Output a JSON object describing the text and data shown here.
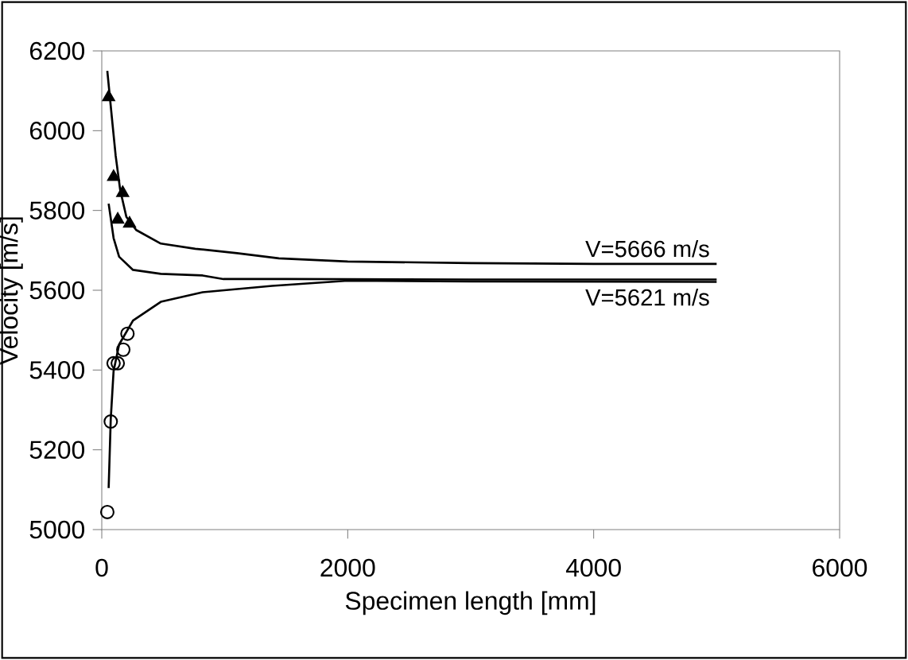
{
  "chart_data": {
    "type": "line",
    "xlabel": "Specimen length [mm]",
    "ylabel": "Velocity [m/s]",
    "xlim": [
      0,
      6000
    ],
    "xticks": [
      0,
      2000,
      4000,
      6000
    ],
    "ylim": [
      5000,
      6200
    ],
    "yticks": [
      5000,
      5200,
      5400,
      5600,
      5800,
      6000,
      6200
    ],
    "series": [
      {
        "marker": "none",
        "color": "#000000",
        "x": [
          45,
          85,
          113,
          150,
          200,
          280,
          480,
          760,
          1100,
          1440,
          2000,
          3000,
          4000,
          5000
        ],
        "values": [
          6150,
          6024,
          5937,
          5851,
          5784,
          5751,
          5717,
          5704,
          5693,
          5680,
          5672,
          5668,
          5666,
          5666
        ]
      },
      {
        "marker": "none",
        "color": "#000000",
        "x": [
          56,
          96,
          141,
          254,
          480,
          820,
          990,
          1500,
          3000,
          5000
        ],
        "values": [
          5817,
          5731,
          5684,
          5651,
          5641,
          5637,
          5628,
          5628,
          5627,
          5627
        ]
      },
      {
        "marker": "none",
        "color": "#000000",
        "x": [
          56,
          73,
          96,
          141,
          254,
          480,
          820,
          1385,
          2000,
          3000,
          5000
        ],
        "values": [
          5104,
          5277,
          5397,
          5464,
          5524,
          5571,
          5595,
          5611,
          5624,
          5622,
          5621
        ]
      },
      {
        "type": "scatter",
        "marker": "triangle",
        "color": "#000000",
        "x": [
          56,
          96,
          170,
          130,
          226
        ],
        "values": [
          6084,
          5884,
          5844,
          5777,
          5767
        ]
      },
      {
        "type": "scatter",
        "marker": "circle",
        "color": "#000000",
        "x": [
          45,
          73,
          96,
          130,
          175,
          209
        ],
        "values": [
          5044,
          5271,
          5417,
          5417,
          5451,
          5491
        ]
      }
    ],
    "annotations": [
      {
        "text": "V=5666 m/s",
        "x": 5000,
        "y": 5666
      },
      {
        "text": "V=5621 m/s",
        "x": 5000,
        "y": 5621
      }
    ]
  }
}
